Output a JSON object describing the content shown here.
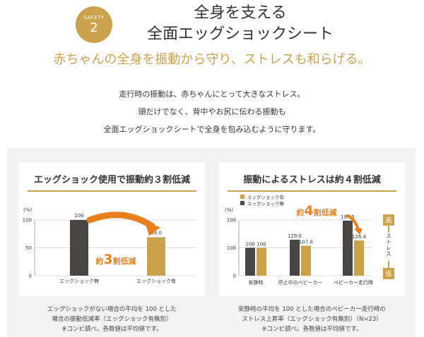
{
  "header": {
    "badge_label": "SAFETY",
    "badge_number": "2",
    "title_line1": "全身を支える",
    "title_line2": "全面エッグショックシート",
    "subtitle": "赤ちゃんの全身を振動から守り、ストレスも和らげる。"
  },
  "intro": [
    "走行時の振動は、赤ちゃんにとって大きなストレス。",
    "頭だけでなく、背中やお尻に伝わる振動も",
    "全面エッグショックシートで全身を包み込むように守ります。"
  ],
  "colors": {
    "gold": "#c9a24b",
    "dark": "#4a4543",
    "orange": "#e97f1c"
  },
  "chart_data": [
    {
      "type": "bar",
      "title": "エッグショック使用で振動約３割低減",
      "unit_label": "(%)",
      "yticks": [
        0,
        50,
        100
      ],
      "ylim": [
        0,
        100
      ],
      "categories": [
        "エッグショック無",
        "エッグショック有"
      ],
      "values": [
        100,
        69.0
      ],
      "value_labels": [
        "100",
        "69.0"
      ],
      "annotation": {
        "pre": "約",
        "num": "3",
        "post": "割低減"
      },
      "note": [
        "エッグショックがない場合の平均を 100 とした",
        "場合の振動低減率（エッグショック有無別）",
        "※コンビ調べ。各数値は平均値です。"
      ]
    },
    {
      "type": "bar",
      "title": "振動によるストレスは約４割低減",
      "unit_label": "(%)",
      "yticks": [
        0,
        100,
        200
      ],
      "ylim": [
        0,
        200
      ],
      "categories": [
        "安静時",
        "停止中のベビーカー",
        "ベビーカー走行時"
      ],
      "series": [
        {
          "name": "エッグショック無",
          "values": [
            100,
            129.0,
            197.5
          ],
          "labels": [
            "100",
            "129.0",
            "197.5"
          ]
        },
        {
          "name": "エッグショック有",
          "values": [
            100,
            107.6,
            126.4
          ],
          "labels": [
            "100",
            "107.6",
            "126.4"
          ]
        }
      ],
      "legend": [
        "エッグショック有",
        "エッグショック無"
      ],
      "annotation": {
        "pre": "約",
        "num": "4",
        "post": "割低減"
      },
      "scale": {
        "high": "高",
        "mid": "ストレス",
        "low": "低"
      },
      "note": [
        "安静時の平均を 100 とした場合のベビーカー走行時の",
        "ストレス上昇率（エッグショック有無別）（N=23）",
        "※コンビ調べ。各数値は平均値です。"
      ]
    }
  ]
}
